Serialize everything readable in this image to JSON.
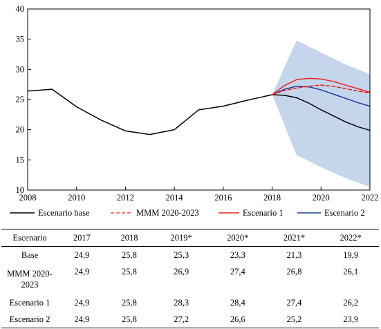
{
  "chart_data": {
    "type": "line",
    "x_range": [
      2008,
      2022
    ],
    "ylim": [
      10,
      40
    ],
    "y_ticks": [
      "10",
      "15",
      "20",
      "25",
      "30",
      "35",
      "40"
    ],
    "x_ticks": [
      "2008",
      "2010",
      "2012",
      "2014",
      "2016",
      "2018",
      "2020",
      "2022"
    ],
    "band": {
      "x": [
        2018,
        2019,
        2020,
        2021,
        2022
      ],
      "upper": [
        25.8,
        34.8,
        32.8,
        30.8,
        29.2
      ],
      "lower": [
        25.8,
        15.8,
        13.8,
        12.0,
        10.5
      ],
      "color": "#c5d6ec"
    },
    "series": [
      {
        "name": "Escenario base",
        "color": "#000000",
        "dash": "solid",
        "x": [
          2008,
          2009,
          2010,
          2011,
          2012,
          2013,
          2014,
          2015,
          2016,
          2017,
          2018,
          2018.5,
          2019,
          2019.5,
          2020,
          2020.5,
          2021,
          2021.5,
          2022
        ],
        "y": [
          26.4,
          26.7,
          23.8,
          21.6,
          19.8,
          19.2,
          20.0,
          23.3,
          23.9,
          24.9,
          25.8,
          25.7,
          25.3,
          24.4,
          23.3,
          22.3,
          21.3,
          20.5,
          19.9
        ]
      },
      {
        "name": "MMM 2020-2023",
        "color": "#e8221d",
        "dash": "dashed",
        "x": [
          2018,
          2018.5,
          2019,
          2019.5,
          2020,
          2020.5,
          2021,
          2021.5,
          2022
        ],
        "y": [
          25.8,
          26.5,
          26.9,
          27.2,
          27.4,
          27.2,
          26.8,
          26.4,
          26.1
        ]
      },
      {
        "name": "Escenario 1",
        "color": "#e8221d",
        "dash": "solid",
        "x": [
          2018,
          2018.5,
          2019,
          2019.5,
          2020,
          2020.5,
          2021,
          2021.5,
          2022
        ],
        "y": [
          25.8,
          27.3,
          28.3,
          28.5,
          28.4,
          28.0,
          27.4,
          26.8,
          26.2
        ]
      },
      {
        "name": "Escenario 2",
        "color": "#1f3f99",
        "dash": "solid",
        "x": [
          2018,
          2018.5,
          2019,
          2019.5,
          2020,
          2020.5,
          2021,
          2021.5,
          2022
        ],
        "y": [
          25.8,
          26.7,
          27.2,
          27.1,
          26.6,
          25.9,
          25.2,
          24.5,
          23.9
        ]
      }
    ]
  },
  "table": {
    "header": [
      "Escenario",
      "2017",
      "2018",
      "2019*",
      "2020*",
      "2021*",
      "2022*"
    ],
    "rows": [
      {
        "label": "Base",
        "values": [
          "24,9",
          "25,8",
          "25,3",
          "23,3",
          "21,3",
          "19,9"
        ]
      },
      {
        "label": "MMM 2020-2023",
        "values": [
          "24,9",
          "25,8",
          "26,9",
          "27,4",
          "26,8",
          "26,1"
        ]
      },
      {
        "label": "Escenario 1",
        "values": [
          "24,9",
          "25,8",
          "28,3",
          "28,4",
          "27,4",
          "26,2"
        ]
      },
      {
        "label": "Escenario 2",
        "values": [
          "24,9",
          "25,8",
          "27,2",
          "26,6",
          "25,2",
          "23,9"
        ]
      }
    ]
  }
}
